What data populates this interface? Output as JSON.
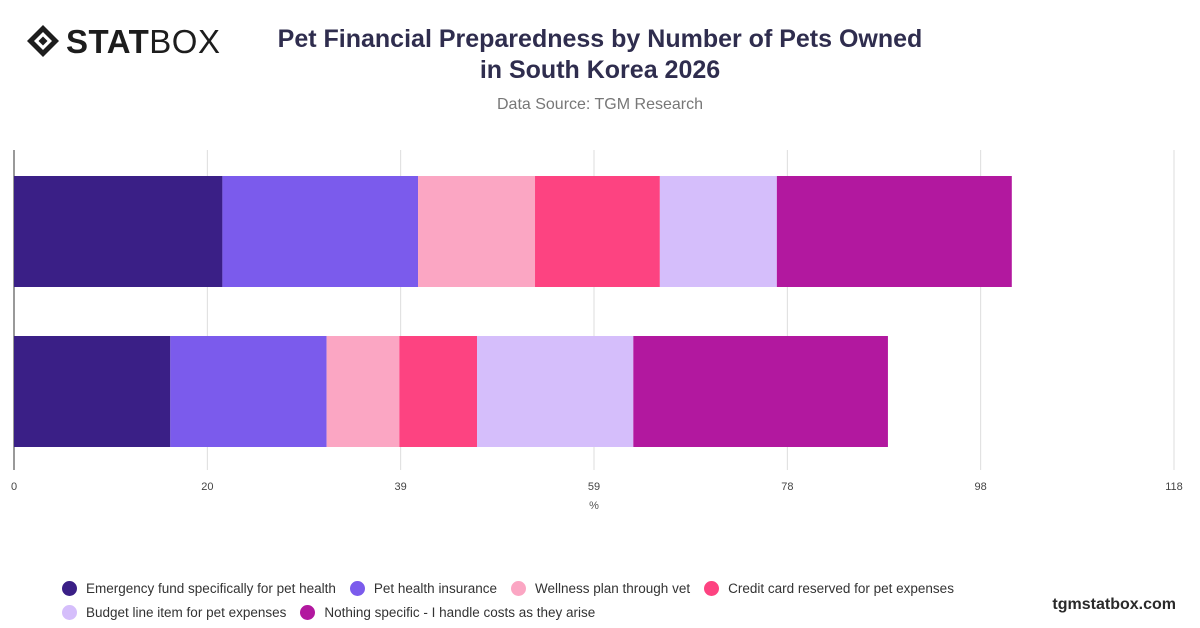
{
  "brand": {
    "logo_bold": "STAT",
    "logo_light": "BOX",
    "watermark": "tgmstatbox.com"
  },
  "header": {
    "title_line1": "Pet Financial Preparedness by Number of Pets Owned",
    "title_line2": "in South Korea 2026",
    "subtitle": "Data Source: TGM Research"
  },
  "colors": {
    "emergency_fund": "#3a1f86",
    "pet_insurance": "#7b5bec",
    "wellness_plan": "#fba6c3",
    "credit_card": "#fd4381",
    "budget_line": "#d5befb",
    "nothing_specific": "#b2189f",
    "grid": "#dddddd",
    "axis": "#333333"
  },
  "chart_data": {
    "type": "bar",
    "orientation": "horizontal",
    "stacked": true,
    "categories": [
      "",
      ""
    ],
    "series": [
      {
        "name": "Emergency fund specifically for pet health",
        "color_key": "emergency_fund",
        "values": [
          21.2,
          15.9
        ]
      },
      {
        "name": "Pet health insurance",
        "color_key": "pet_insurance",
        "values": [
          19.9,
          15.9
        ]
      },
      {
        "name": "Wellness plan through vet",
        "color_key": "wellness_plan",
        "values": [
          11.9,
          7.4
        ]
      },
      {
        "name": "Credit card reserved for pet expenses",
        "color_key": "credit_card",
        "values": [
          12.7,
          7.9
        ]
      },
      {
        "name": "Budget line item for pet expenses",
        "color_key": "budget_line",
        "values": [
          11.9,
          15.9
        ]
      },
      {
        "name": "Nothing specific - I handle costs as they arise",
        "color_key": "nothing_specific",
        "values": [
          23.9,
          25.9
        ]
      }
    ],
    "xlabel": "%",
    "ylabel": "",
    "xlim": [
      0,
      118
    ],
    "x_ticks": [
      "0",
      "20",
      "39",
      "59",
      "78",
      "98",
      "118"
    ],
    "grid": true,
    "legend": "bottom"
  }
}
